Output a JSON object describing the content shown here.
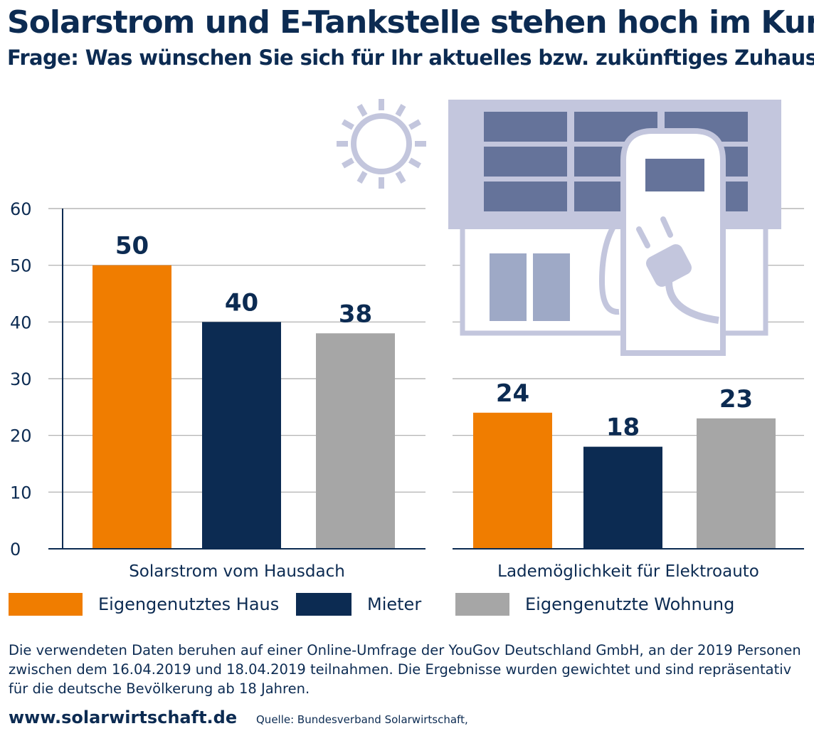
{
  "title": "Solarstrom und E-Tankstelle stehen hoch im Kurs",
  "subtitle": "Frage: Was wünschen Sie sich für Ihr aktuelles bzw. zukünftiges Zuhause?",
  "legend": [
    {
      "label": "Eigengenutztes Haus",
      "color": "#f07d00"
    },
    {
      "label": "Mieter",
      "color": "#0c2b52"
    },
    {
      "label": "Eigengenutzte Wohnung",
      "color": "#a6a6a6"
    }
  ],
  "note": "Die verwendeten Daten beruhen auf einer Online-Umfrage der YouGov Deutschland GmbH, an der 2019 Personen zwischen dem 16.04.2019 und 18.04.2019 teilnahmen. Die Ergebnisse wurden gewichtet und sind repräsentativ für die deutsche Bevölkerung ab 18 Jahren.",
  "website": "www.solarwirtschaft.de",
  "source": "Quelle: Bundesverband Solarwirtschaft,",
  "icons": [
    "sun-icon",
    "house-with-solar-panels-icon",
    "charging-station-icon",
    "plug-icon"
  ],
  "chart_data": {
    "type": "bar",
    "title": "Solarstrom und E-Tankstelle stehen hoch im Kurs",
    "subtitle": "Frage: Was wünschen Sie sich für Ihr aktuelles bzw. zukünftiges Zuhause?",
    "categories": [
      "Solarstrom vom Hausdach",
      "Lademöglichkeit für Elektroauto"
    ],
    "series": [
      {
        "name": "Eigengenutztes Haus",
        "values": [
          50,
          24
        ],
        "color": "#f07d00"
      },
      {
        "name": "Mieter",
        "values": [
          40,
          18
        ],
        "color": "#0c2b52"
      },
      {
        "name": "Eigengenutzte Wohnung",
        "values": [
          38,
          23
        ],
        "color": "#a6a6a6"
      }
    ],
    "data_labels": [
      [
        "50",
        "40",
        "38"
      ],
      [
        "24",
        "18",
        "23"
      ]
    ],
    "yticks": [
      0,
      10,
      20,
      30,
      40,
      50,
      60
    ],
    "ylim": [
      0,
      60
    ],
    "xlabel": "",
    "ylabel": "",
    "grid": true,
    "legend_position": "bottom"
  }
}
